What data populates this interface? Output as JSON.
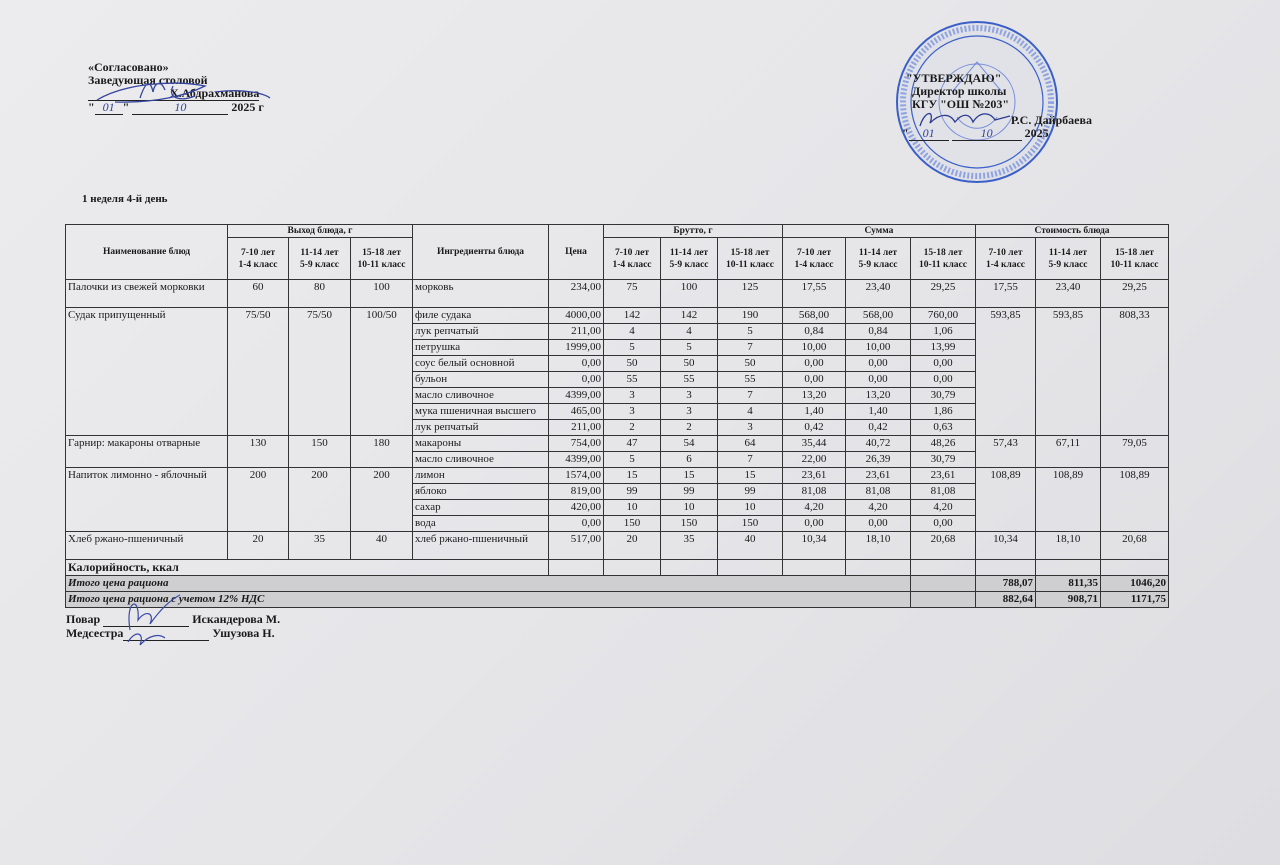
{
  "left_header": {
    "agreed": "«Согласовано»",
    "role": "Заведующая столовой",
    "name": "Х.Абдрахманова",
    "date_day": "01",
    "date_month": "10",
    "year": "2025 г"
  },
  "right_header": {
    "approve": "\"УТВЕРЖДАЮ\"",
    "role": "Директор школы",
    "org": "КГУ  \"ОШ №203\"",
    "name": "Р.С. Дайрбаева",
    "date_day": "01",
    "date_month": "10",
    "year": "2025"
  },
  "stamp": {
    "color": "#3a5fc8"
  },
  "week_day": "1 неделя 4-й день",
  "table": {
    "headers": {
      "dish": "Наименование блюд",
      "yield": "Выход блюда, г",
      "ingredients": "Ингредиенты блюда",
      "price": "Цена",
      "brutto": "Брутто, г",
      "sum": "Сумма",
      "cost": "Стоимость блюда",
      "age_groups": [
        [
          "7-10 лет",
          "1-4 класс"
        ],
        [
          "11-14 лет",
          "5-9 класс"
        ],
        [
          "15-18 лет",
          "10-11 класс"
        ]
      ]
    },
    "dishes": [
      {
        "name": "Палочки из свежей морковки",
        "yield": [
          "60",
          "80",
          "100"
        ],
        "cost": [
          "17,55",
          "23,40",
          "29,25"
        ],
        "ingredients": [
          {
            "name": "морковь",
            "price": "234,00",
            "brutto": [
              "75",
              "100",
              "125"
            ],
            "sum": [
              "17,55",
              "23,40",
              "29,25"
            ]
          }
        ]
      },
      {
        "name": "Судак припущенный",
        "yield": [
          "75/50",
          "75/50",
          "100/50"
        ],
        "cost": [
          "593,85",
          "593,85",
          "808,33"
        ],
        "ingredients": [
          {
            "name": "филе судака",
            "price": "4000,00",
            "brutto": [
              "142",
              "142",
              "190"
            ],
            "sum": [
              "568,00",
              "568,00",
              "760,00"
            ]
          },
          {
            "name": "лук репчатый",
            "price": "211,00",
            "brutto": [
              "4",
              "4",
              "5"
            ],
            "sum": [
              "0,84",
              "0,84",
              "1,06"
            ]
          },
          {
            "name": "петрушка",
            "price": "1999,00",
            "brutto": [
              "5",
              "5",
              "7"
            ],
            "sum": [
              "10,00",
              "10,00",
              "13,99"
            ]
          },
          {
            "name": "соус белый основной",
            "price": "0,00",
            "brutto": [
              "50",
              "50",
              "50"
            ],
            "sum": [
              "0,00",
              "0,00",
              "0,00"
            ]
          },
          {
            "name": "бульон",
            "price": "0,00",
            "brutto": [
              "55",
              "55",
              "55"
            ],
            "sum": [
              "0,00",
              "0,00",
              "0,00"
            ]
          },
          {
            "name": "масло сливочное",
            "price": "4399,00",
            "brutto": [
              "3",
              "3",
              "7"
            ],
            "sum": [
              "13,20",
              "13,20",
              "30,79"
            ]
          },
          {
            "name": "мука пшеничная высшего",
            "price": "465,00",
            "brutto": [
              "3",
              "3",
              "4"
            ],
            "sum": [
              "1,40",
              "1,40",
              "1,86"
            ]
          },
          {
            "name": "лук репчатый",
            "price": "211,00",
            "brutto": [
              "2",
              "2",
              "3"
            ],
            "sum": [
              "0,42",
              "0,42",
              "0,63"
            ]
          }
        ]
      },
      {
        "name": "Гарнир: макароны отварные",
        "yield": [
          "130",
          "150",
          "180"
        ],
        "cost": [
          "57,43",
          "67,11",
          "79,05"
        ],
        "ingredients": [
          {
            "name": "макароны",
            "price": "754,00",
            "brutto": [
              "47",
              "54",
              "64"
            ],
            "sum": [
              "35,44",
              "40,72",
              "48,26"
            ]
          },
          {
            "name": "масло сливочное",
            "price": "4399,00",
            "brutto": [
              "5",
              "6",
              "7"
            ],
            "sum": [
              "22,00",
              "26,39",
              "30,79"
            ]
          }
        ]
      },
      {
        "name": "Напиток лимонно - яблочный",
        "yield": [
          "200",
          "200",
          "200"
        ],
        "cost": [
          "108,89",
          "108,89",
          "108,89"
        ],
        "ingredients": [
          {
            "name": "лимон",
            "price": "1574,00",
            "brutto": [
              "15",
              "15",
              "15"
            ],
            "sum": [
              "23,61",
              "23,61",
              "23,61"
            ]
          },
          {
            "name": "яблоко",
            "price": "819,00",
            "brutto": [
              "99",
              "99",
              "99"
            ],
            "sum": [
              "81,08",
              "81,08",
              "81,08"
            ]
          },
          {
            "name": "сахар",
            "price": "420,00",
            "brutto": [
              "10",
              "10",
              "10"
            ],
            "sum": [
              "4,20",
              "4,20",
              "4,20"
            ]
          },
          {
            "name": "вода",
            "price": "0,00",
            "brutto": [
              "150",
              "150",
              "150"
            ],
            "sum": [
              "0,00",
              "0,00",
              "0,00"
            ]
          }
        ]
      },
      {
        "name": "Хлеб ржано-пшеничный",
        "yield": [
          "20",
          "35",
          "40"
        ],
        "cost": [
          "10,34",
          "18,10",
          "20,68"
        ],
        "ingredients": [
          {
            "name": "хлеб ржано-пшеничный",
            "price": "517,00",
            "brutto": [
              "20",
              "35",
              "40"
            ],
            "sum": [
              "10,34",
              "18,10",
              "20,68"
            ]
          }
        ]
      }
    ],
    "calories_label": "Калорийность, ккал",
    "total_label": "Итого цена рациона",
    "total": [
      "788,07",
      "811,35",
      "1046,20"
    ],
    "total_vat_label": "Итого цена рациона с учетом 12% НДС",
    "total_vat": [
      "882,64",
      "908,71",
      "1171,75"
    ]
  },
  "footer": {
    "cook_role": "Повар",
    "cook_name": "Искандерова М.",
    "nurse_role": "Медсестра",
    "nurse_name": "Ушузова Н."
  }
}
